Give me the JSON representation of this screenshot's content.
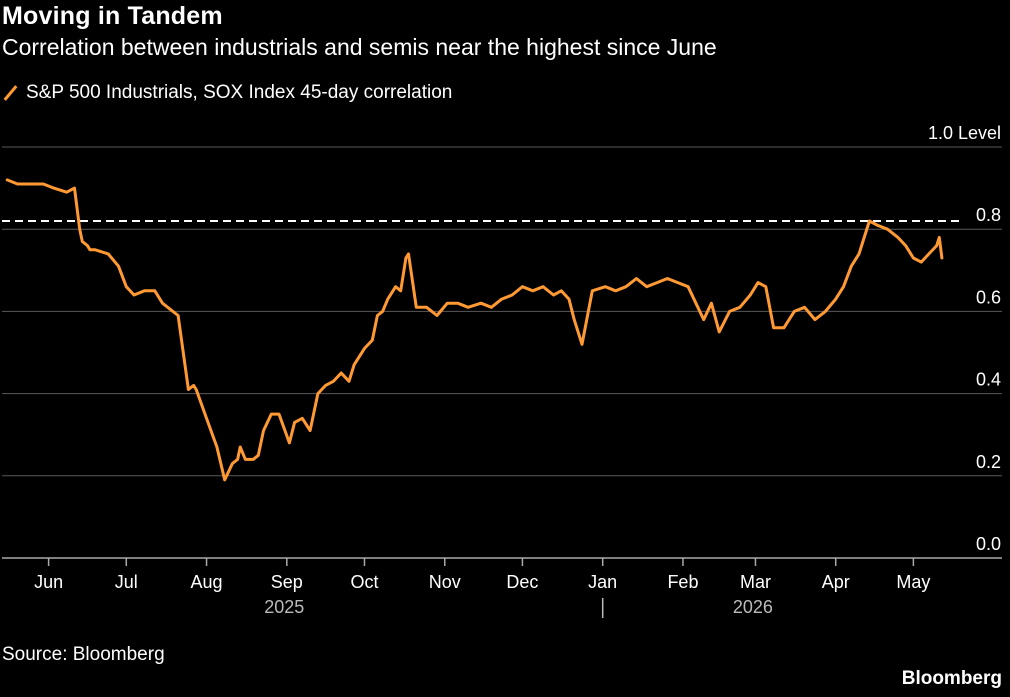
{
  "title": "Moving in Tandem",
  "subtitle": "Correlation between industrials and semis near the highest since June",
  "legend_label": "S&P 500 Industrials, SOX Index 45-day correlation",
  "source": "Source: Bloomberg",
  "brand": "Bloomberg",
  "colors": {
    "series": "#ff9933",
    "background": "#000000",
    "grid": "#5a5a5a",
    "text": "#ffffff",
    "muted": "#bbbbbb"
  },
  "chart_data": {
    "type": "line",
    "title": "Moving in Tandem",
    "subtitle": "Correlation between industrials and semis near the highest since June",
    "ylabel": "",
    "ylim": [
      0,
      1.0
    ],
    "ytick_labels": [
      "0.0",
      "0.2",
      "0.4",
      "0.6",
      "0.8",
      "1.0 Level"
    ],
    "yticks": [
      0,
      0.2,
      0.4,
      0.6,
      0.8,
      1.0
    ],
    "grid": true,
    "legend_position": "top-left",
    "reference_line": 0.82,
    "xlim": [
      "2025-05-14",
      "2026-05-19"
    ],
    "x_ticks": [
      {
        "label": "Jun",
        "date": "2025-06-01"
      },
      {
        "label": "Jul",
        "date": "2025-07-01"
      },
      {
        "label": "Aug",
        "date": "2025-08-01"
      },
      {
        "label": "Sep",
        "date": "2025-09-01"
      },
      {
        "label": "Oct",
        "date": "2025-10-01"
      },
      {
        "label": "Nov",
        "date": "2025-11-01"
      },
      {
        "label": "Dec",
        "date": "2025-12-01"
      },
      {
        "label": "Jan",
        "date": "2026-01-01"
      },
      {
        "label": "Feb",
        "date": "2026-02-01"
      },
      {
        "label": "Mar",
        "date": "2026-03-01"
      },
      {
        "label": "Apr",
        "date": "2026-04-01"
      },
      {
        "label": "May",
        "date": "2026-05-01"
      }
    ],
    "year_labels": [
      {
        "label": "2025",
        "date": "2025-08-31"
      },
      {
        "label": "2026",
        "date": "2026-02-28"
      }
    ],
    "year_separator": "2026-01-01",
    "series": [
      {
        "name": "S&P 500 Industrials, SOX Index 45-day correlation",
        "x": [
          "2025-05-16",
          "2025-05-20",
          "2025-05-25",
          "2025-05-30",
          "2025-06-03",
          "2025-06-08",
          "2025-06-11",
          "2025-06-13",
          "2025-06-14",
          "2025-06-16",
          "2025-06-17",
          "2025-06-19",
          "2025-06-24",
          "2025-06-28",
          "2025-07-01",
          "2025-07-04",
          "2025-07-08",
          "2025-07-12",
          "2025-07-15",
          "2025-07-17",
          "2025-07-21",
          "2025-07-25",
          "2025-07-27",
          "2025-07-28",
          "2025-08-01",
          "2025-08-05",
          "2025-08-08",
          "2025-08-11",
          "2025-08-13",
          "2025-08-14",
          "2025-08-16",
          "2025-08-19",
          "2025-08-21",
          "2025-08-23",
          "2025-08-26",
          "2025-08-29",
          "2025-09-02",
          "2025-09-04",
          "2025-09-07",
          "2025-09-10",
          "2025-09-13",
          "2025-09-16",
          "2025-09-19",
          "2025-09-22",
          "2025-09-25",
          "2025-09-27",
          "2025-10-01",
          "2025-10-04",
          "2025-10-06",
          "2025-10-08",
          "2025-10-10",
          "2025-10-13",
          "2025-10-15",
          "2025-10-17",
          "2025-10-18",
          "2025-10-21",
          "2025-10-25",
          "2025-10-29",
          "2025-11-02",
          "2025-11-06",
          "2025-11-10",
          "2025-11-15",
          "2025-11-19",
          "2025-11-23",
          "2025-11-27",
          "2025-12-01",
          "2025-12-05",
          "2025-12-09",
          "2025-12-13",
          "2025-12-16",
          "2025-12-19",
          "2025-12-21",
          "2025-12-24",
          "2025-12-28",
          "2026-01-02",
          "2026-01-06",
          "2026-01-10",
          "2026-01-14",
          "2026-01-18",
          "2026-01-22",
          "2026-01-26",
          "2026-01-30",
          "2026-02-03",
          "2026-02-06",
          "2026-02-09",
          "2026-02-12",
          "2026-02-15",
          "2026-02-19",
          "2026-02-23",
          "2026-02-27",
          "2026-03-02",
          "2026-03-05",
          "2026-03-08",
          "2026-03-12",
          "2026-03-16",
          "2026-03-20",
          "2026-03-24",
          "2026-03-28",
          "2026-04-01",
          "2026-04-04",
          "2026-04-07",
          "2026-04-10",
          "2026-04-12",
          "2026-04-14",
          "2026-04-17",
          "2026-04-21",
          "2026-04-25",
          "2026-04-28",
          "2026-05-01",
          "2026-05-04",
          "2026-05-07",
          "2026-05-10",
          "2026-05-11",
          "2026-05-12"
        ],
        "values": [
          0.92,
          0.91,
          0.91,
          0.91,
          0.9,
          0.89,
          0.9,
          0.8,
          0.77,
          0.76,
          0.75,
          0.75,
          0.74,
          0.71,
          0.66,
          0.64,
          0.65,
          0.65,
          0.62,
          0.61,
          0.59,
          0.41,
          0.42,
          0.41,
          0.34,
          0.27,
          0.19,
          0.23,
          0.24,
          0.27,
          0.24,
          0.24,
          0.25,
          0.31,
          0.35,
          0.35,
          0.28,
          0.33,
          0.34,
          0.31,
          0.4,
          0.42,
          0.43,
          0.45,
          0.43,
          0.47,
          0.51,
          0.53,
          0.59,
          0.6,
          0.63,
          0.66,
          0.65,
          0.73,
          0.74,
          0.61,
          0.61,
          0.59,
          0.62,
          0.62,
          0.61,
          0.62,
          0.61,
          0.63,
          0.64,
          0.66,
          0.65,
          0.66,
          0.64,
          0.65,
          0.63,
          0.58,
          0.52,
          0.65,
          0.66,
          0.65,
          0.66,
          0.68,
          0.66,
          0.67,
          0.68,
          0.67,
          0.66,
          0.62,
          0.58,
          0.62,
          0.55,
          0.6,
          0.61,
          0.64,
          0.67,
          0.66,
          0.56,
          0.56,
          0.6,
          0.61,
          0.58,
          0.6,
          0.63,
          0.66,
          0.71,
          0.74,
          0.78,
          0.82,
          0.81,
          0.8,
          0.78,
          0.76,
          0.73,
          0.72,
          0.74,
          0.76,
          0.78,
          0.73
        ]
      }
    ]
  }
}
